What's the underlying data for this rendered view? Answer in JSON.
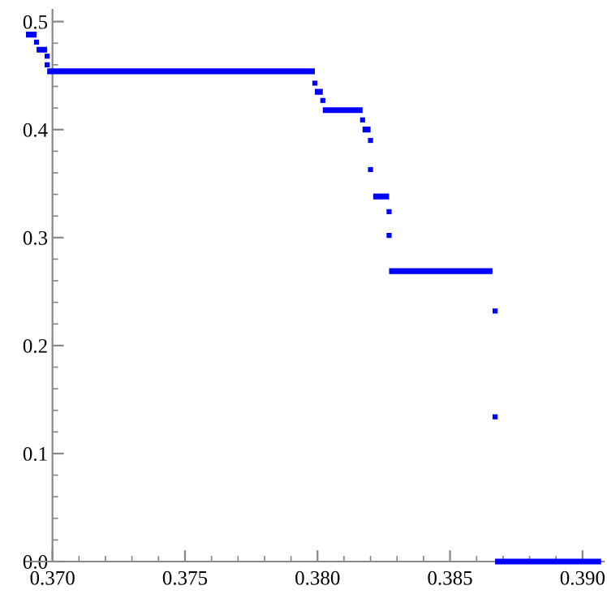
{
  "chart_data": {
    "type": "line",
    "xlim": [
      0.369,
      0.3908
    ],
    "ylim": [
      0,
      0.511
    ],
    "xticks": [
      {
        "value": 0.37,
        "label": "0.370"
      },
      {
        "value": 0.375,
        "label": "0.375"
      },
      {
        "value": 0.38,
        "label": "0.380"
      },
      {
        "value": 0.385,
        "label": "0.385"
      },
      {
        "value": 0.39,
        "label": "0.390"
      }
    ],
    "yticks": [
      {
        "value": 0.0,
        "label": "0.0"
      },
      0.1,
      0.2,
      0.3,
      0.4,
      0.5
    ],
    "series": [
      {
        "color": "#0000ff",
        "line_style": "solid",
        "marker": "none",
        "x": [
          0.369,
          0.3694,
          null,
          0.3694,
          0.3698,
          null,
          0.3698,
          0.3799,
          null,
          0.3799,
          0.3802,
          null,
          0.3802,
          0.3817,
          null,
          0.3817,
          0.382,
          null,
          0.3821,
          0.3827,
          null,
          0.3827,
          0.3866,
          null,
          0.3867,
          0.3907
        ],
        "values": [
          0.488,
          0.488,
          null,
          0.474,
          0.474,
          null,
          0.454,
          0.454,
          null,
          0.435,
          0.435,
          null,
          0.418,
          0.418,
          null,
          0.4,
          0.4,
          null,
          0.338,
          0.338,
          null,
          0.269,
          0.269,
          null,
          0,
          0
        ]
      },
      {
        "type": "scatter",
        "color": "#0000ff",
        "marker": "square",
        "x": [
          0.3694,
          0.3698,
          0.3698,
          0.3799,
          0.3802,
          0.3817,
          0.382,
          0.382,
          0.3827,
          0.3827,
          0.3867,
          0.3867
        ],
        "values": [
          0.481,
          0.468,
          0.46,
          0.443,
          0.427,
          0.409,
          0.39,
          0.363,
          0.324,
          0.302,
          0.232,
          0.134
        ]
      }
    ],
    "grid": false,
    "legend": false
  }
}
